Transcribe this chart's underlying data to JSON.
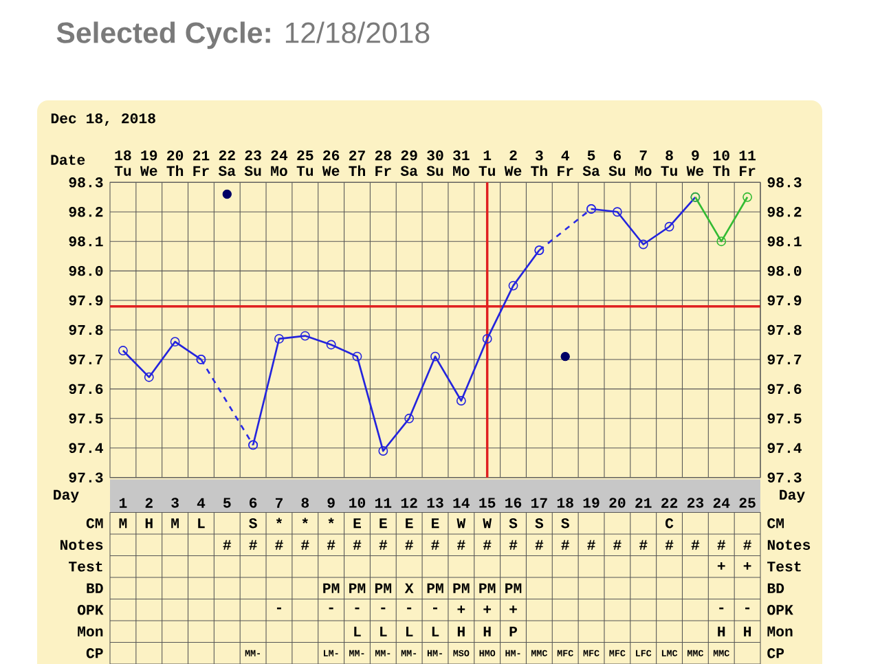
{
  "chart_data": [
    {
      "type": "line",
      "title": "**Selected Cycle:** 12/18/2018",
      "subtitle": "Dec 18, 2018",
      "xlabel": "Date",
      "categories": [
        "18 Tu",
        "19 We",
        "20 Th",
        "21 Fr",
        "22 Sa",
        "23 Su",
        "24 Mo",
        "25 Tu",
        "26 We",
        "27 Th",
        "28 Fr",
        "29 Sa",
        "30 Su",
        "31 Mo",
        "1 Tu",
        "2 We",
        "3 Th",
        "4 Fr",
        "5 Sa",
        "6 Su",
        "7 Mo",
        "8 Tu",
        "9 We",
        "10 Th",
        "11 Fr"
      ],
      "ylim": [
        97.3,
        98.3
      ],
      "yticks": [
        97.3,
        97.4,
        97.5,
        97.6,
        97.7,
        97.8,
        97.9,
        {
          "value": 98.0,
          "label": "98.0"
        },
        98.1,
        98.2,
        98.3
      ],
      "y2lim": [
        97.3,
        98.3
      ],
      "y2ticks": [
        97.3,
        97.4,
        97.5,
        97.6,
        97.7,
        97.8,
        97.9,
        {
          "value": 98.0,
          "label": "98.0"
        },
        98.1,
        98.2,
        98.3
      ],
      "grid": true,
      "marker": "circle",
      "ref_lines": [
        {
          "axis": "y",
          "value": 97.88,
          "color": "#e02020"
        },
        {
          "axis": "x",
          "value": "1 Tu",
          "color": "#e02020"
        }
      ],
      "series": [
        {
          "color": "#2424dd",
          "values": [
            97.73,
            97.64,
            97.76,
            97.7,
            null,
            97.41,
            97.77,
            97.78,
            97.75,
            97.71,
            97.39,
            97.5,
            97.71,
            97.56,
            97.77,
            97.95,
            98.07,
            null,
            98.21,
            98.2,
            98.09,
            98.15,
            98.25,
            null,
            null
          ]
        },
        {
          "color": "#33bb33",
          "values": [
            null,
            null,
            null,
            null,
            null,
            null,
            null,
            null,
            null,
            null,
            null,
            null,
            null,
            null,
            null,
            null,
            null,
            null,
            null,
            null,
            null,
            null,
            98.25,
            98.1,
            98.25
          ]
        },
        {
          "color": "#2a2ae6",
          "line_style": "dashed",
          "x": [
            "21 Fr",
            "23 Su"
          ],
          "values": [
            97.7,
            97.41
          ]
        },
        {
          "color": "#2a2ae6",
          "line_style": "dashed",
          "x": [
            "3 Th",
            "5 Sa"
          ],
          "values": [
            98.07,
            98.21
          ]
        },
        {
          "type": "scatter",
          "color": "#000066",
          "x": [
            "22 Sa",
            "4 Fr"
          ],
          "values": [
            98.26,
            97.71
          ]
        }
      ]
    },
    {
      "type": "heatmap",
      "xlabel": "Day",
      "categories": [
        "1",
        "2",
        "3",
        "4",
        "5",
        "6",
        "7",
        "8",
        "9",
        "10",
        "11",
        "12",
        "13",
        "14",
        "15",
        "16",
        "17",
        "18",
        "19",
        "20",
        "21",
        "22",
        "23",
        "24",
        "25"
      ],
      "y_categories": [
        "CM",
        "Notes",
        "Test",
        "BD",
        "OPK",
        "Mon",
        "CP"
      ],
      "y2_categories": [
        "CM",
        "Notes",
        "Test",
        "BD",
        "OPK",
        "Mon",
        "CP"
      ],
      "cells": [
        [
          null,
          null,
          null,
          null,
          null,
          null,
          null,
          null,
          null,
          null,
          null,
          null,
          null,
          null,
          null,
          null,
          null,
          null,
          null,
          null,
          null,
          null,
          null,
          null,
          null
        ],
        [
          null,
          null,
          null,
          null,
          null,
          null,
          null,
          null,
          null,
          null,
          null,
          null,
          null,
          null,
          null,
          null,
          null,
          null,
          null,
          null,
          null,
          null,
          null,
          null,
          null
        ],
        [
          null,
          null,
          null,
          null,
          null,
          null,
          null,
          null,
          null,
          null,
          null,
          null,
          null,
          null,
          null,
          null,
          null,
          null,
          null,
          null,
          null,
          null,
          null,
          null,
          null
        ],
        [
          null,
          null,
          null,
          null,
          null,
          null,
          null,
          null,
          null,
          null,
          null,
          null,
          null,
          null,
          null,
          null,
          null,
          null,
          null,
          null,
          null,
          null,
          null,
          null,
          null
        ],
        [
          null,
          null,
          null,
          null,
          null,
          null,
          null,
          null,
          null,
          null,
          null,
          null,
          null,
          null,
          null,
          null,
          null,
          null,
          null,
          null,
          null,
          null,
          null,
          null,
          null
        ],
        [
          null,
          null,
          null,
          null,
          null,
          null,
          null,
          null,
          null,
          null,
          null,
          null,
          null,
          null,
          null,
          null,
          null,
          null,
          null,
          null,
          null,
          null,
          null,
          null,
          null
        ],
        [
          null,
          null,
          null,
          null,
          null,
          null,
          null,
          null,
          null,
          null,
          null,
          null,
          null,
          null,
          null,
          null,
          null,
          null,
          null,
          null,
          null,
          null,
          null,
          null,
          null
        ]
      ],
      "cell_labels": [
        [
          "M",
          "H",
          "M",
          "L",
          null,
          "S",
          "*",
          "*",
          "*",
          "E",
          "E",
          "E",
          "E",
          "W",
          "W",
          "S",
          "S",
          "S",
          null,
          null,
          null,
          "C",
          null,
          null,
          null
        ],
        [
          null,
          null,
          null,
          null,
          "#",
          "#",
          "#",
          "#",
          "#",
          "#",
          "#",
          "#",
          "#",
          "#",
          "#",
          "#",
          "#",
          "#",
          "#",
          "#",
          "#",
          "#",
          "#",
          "#",
          "#"
        ],
        [
          null,
          null,
          null,
          null,
          null,
          null,
          null,
          null,
          null,
          null,
          null,
          null,
          null,
          null,
          null,
          null,
          null,
          null,
          null,
          null,
          null,
          null,
          null,
          "+",
          "+"
        ],
        [
          null,
          null,
          null,
          null,
          null,
          null,
          null,
          null,
          "PM",
          "PM",
          "PM",
          "X",
          "PM",
          "PM",
          "PM",
          "PM",
          null,
          null,
          null,
          null,
          null,
          null,
          null,
          null,
          null
        ],
        [
          null,
          null,
          null,
          null,
          null,
          null,
          "-",
          null,
          "-",
          "-",
          "-",
          "-",
          "-",
          "+",
          "+",
          "+",
          null,
          null,
          null,
          null,
          null,
          null,
          null,
          "-",
          "-"
        ],
        [
          null,
          null,
          null,
          null,
          null,
          null,
          null,
          null,
          null,
          "L",
          "L",
          "L",
          "L",
          "H",
          "H",
          "P",
          null,
          null,
          null,
          null,
          null,
          null,
          null,
          "H",
          "H"
        ],
        [
          null,
          null,
          null,
          null,
          null,
          "MM-",
          null,
          null,
          "LM-",
          "MM-",
          "MM-",
          "MM-",
          "HM-",
          "MSO",
          "HMO",
          "HM-",
          "MMC",
          "MFC",
          "MFC",
          "MFC",
          "LFC",
          "LMC",
          "MMC",
          "MMC",
          null
        ]
      ]
    }
  ]
}
